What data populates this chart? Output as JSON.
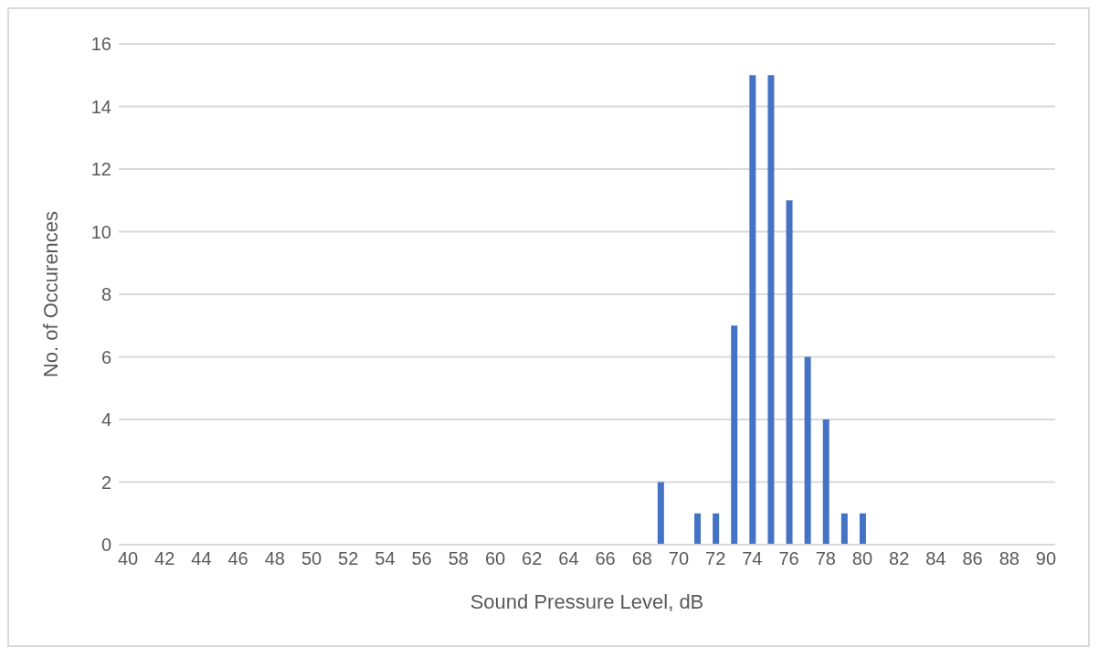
{
  "chart_data": {
    "type": "bar",
    "xlabel": "Sound Pressure Level, dB",
    "ylabel": "No. of Occurences",
    "categories": [
      "40",
      null,
      "42",
      null,
      "44",
      null,
      "46",
      null,
      "48",
      null,
      "50",
      null,
      "52",
      null,
      "54",
      null,
      "56",
      null,
      "58",
      null,
      "60",
      null,
      "62",
      null,
      "64",
      null,
      "66",
      null,
      "68",
      null,
      "70",
      null,
      "72",
      null,
      "74",
      null,
      "76",
      null,
      "78",
      null,
      "80",
      null,
      "82",
      null,
      "84",
      null,
      "86",
      null,
      "88",
      null,
      "90"
    ],
    "values": [
      0,
      0,
      0,
      0,
      0,
      0,
      0,
      0,
      0,
      0,
      0,
      0,
      0,
      0,
      0,
      0,
      0,
      0,
      0,
      0,
      0,
      0,
      0,
      0,
      0,
      0,
      0,
      0,
      0,
      2,
      0,
      1,
      1,
      7,
      15,
      15,
      11,
      6,
      4,
      1,
      1,
      0,
      0,
      0,
      0,
      0,
      0,
      0,
      0,
      0,
      0
    ],
    "color": "#4472c4",
    "ylim": [
      0,
      16
    ],
    "yticks": [
      0,
      2,
      4,
      6,
      8,
      10,
      12,
      14,
      16
    ],
    "grid": "y"
  }
}
